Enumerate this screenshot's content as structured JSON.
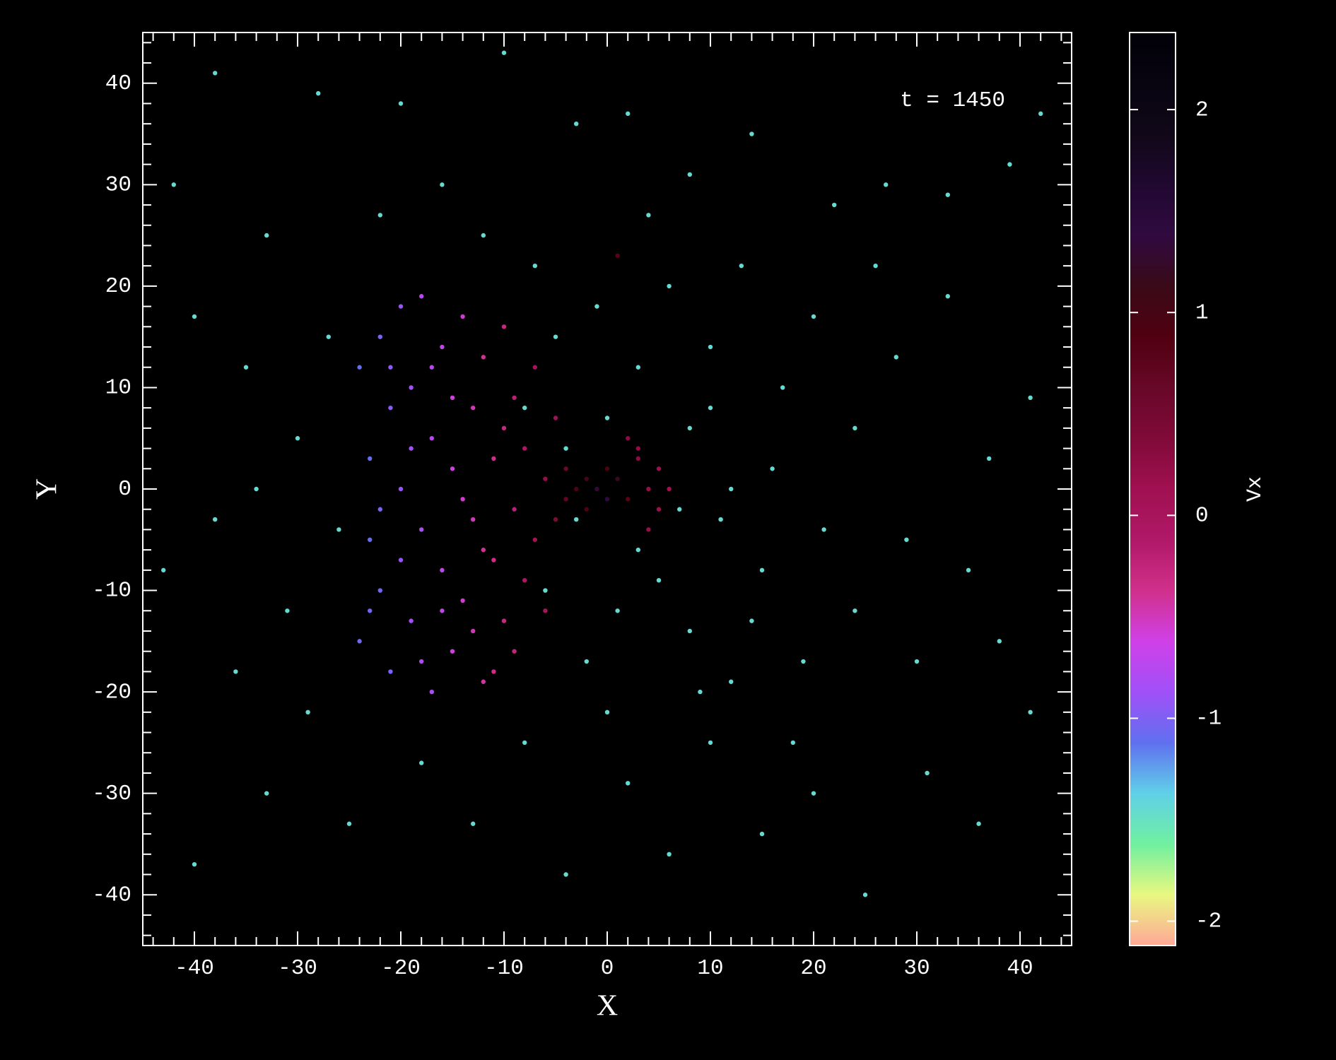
{
  "chart_data": {
    "type": "scatter",
    "annotation": "t = 1450",
    "xlabel": "X",
    "ylabel": "Y",
    "colorbar_label": "Vx",
    "xlim": [
      -45,
      45
    ],
    "ylim": [
      -45,
      45
    ],
    "xticks": [
      -40,
      -30,
      -20,
      -10,
      0,
      10,
      20,
      30,
      40
    ],
    "yticks": [
      -40,
      -30,
      -20,
      -10,
      0,
      10,
      20,
      30,
      40
    ],
    "xminorticks": [
      -44,
      -42,
      -38,
      -36,
      -34,
      -32,
      -28,
      -26,
      -24,
      -22,
      -18,
      -16,
      -14,
      -12,
      -8,
      -6,
      -4,
      -2,
      2,
      4,
      6,
      8,
      12,
      14,
      16,
      18,
      22,
      24,
      26,
      28,
      32,
      34,
      36,
      38,
      42,
      44
    ],
    "yminorticks": [
      -44,
      -42,
      -38,
      -36,
      -34,
      -32,
      -28,
      -26,
      -24,
      -22,
      -18,
      -16,
      -14,
      -12,
      -8,
      -6,
      -4,
      -2,
      2,
      4,
      6,
      8,
      12,
      14,
      16,
      18,
      22,
      24,
      26,
      28,
      32,
      34,
      36,
      38,
      42,
      44
    ],
    "clim": [
      -2.12,
      2.38
    ],
    "colorbar_ticks": [
      -2,
      -1,
      0,
      1,
      2
    ],
    "colormap": [
      "#ffa898",
      "#e8f880",
      "#70f0a0",
      "#60d0e8",
      "#6070f0",
      "#a050f8",
      "#d040e8",
      "#d0308a",
      "#b01868",
      "#a01050",
      "#800a38",
      "#680828",
      "#500010",
      "#3a0a18",
      "#300a40",
      "#200830",
      "#100818",
      "#080410",
      "#000008"
    ],
    "x": [
      -42,
      -38,
      -33,
      -28,
      -20,
      -10,
      -3,
      2,
      8,
      14,
      22,
      27,
      33,
      39,
      42,
      -40,
      -35,
      -30,
      -38,
      -43,
      -36,
      -29,
      -33,
      -40,
      -25,
      -18,
      -13,
      -8,
      -4,
      2,
      6,
      10,
      15,
      20,
      25,
      31,
      36,
      41,
      -5,
      -1,
      3,
      6,
      10,
      13,
      17,
      20,
      24,
      28,
      33,
      37,
      41,
      35,
      29,
      24,
      19,
      15,
      11,
      8,
      5,
      1,
      -2,
      -6,
      -8,
      -4,
      0,
      3,
      8,
      12,
      16,
      21,
      26,
      30,
      38,
      -12,
      -16,
      -22,
      -27,
      -31,
      -26,
      -34,
      7,
      10,
      -3,
      12,
      14,
      18,
      4,
      -7,
      9,
      0,
      -24,
      -23,
      -24,
      -23,
      -22,
      -22,
      -21,
      -21,
      -20,
      -20,
      -19,
      -19,
      -18,
      -18,
      -17,
      -17,
      -16,
      -16,
      -15,
      -15,
      -14,
      -14,
      -13,
      -13,
      -12,
      -12,
      -11,
      -11,
      -10,
      -10,
      -9,
      -9,
      -8,
      -8,
      -7,
      -7,
      -6,
      -6,
      -5,
      -5,
      -4,
      -4,
      -3,
      -2,
      -2,
      -1,
      0,
      1,
      0,
      2,
      3,
      4,
      5,
      4,
      3,
      5,
      2,
      6,
      -13,
      -17,
      -20,
      -22,
      -18,
      -15,
      -12,
      -10,
      -9,
      -11,
      -14,
      -16,
      -19,
      -21,
      -23,
      1
    ],
    "values": [
      30,
      41,
      25,
      39,
      38,
      43,
      36,
      37,
      31,
      35,
      28,
      30,
      29,
      32,
      37,
      17,
      12,
      5,
      -3,
      -8,
      -18,
      -22,
      -30,
      -37,
      -33,
      -27,
      -33,
      -25,
      -38,
      -29,
      -36,
      -25,
      -34,
      -30,
      -40,
      -28,
      -33,
      -22,
      15,
      18,
      12,
      20,
      14,
      22,
      10,
      17,
      6,
      13,
      19,
      3,
      9,
      -8,
      -5,
      -12,
      -17,
      -8,
      -3,
      6,
      -9,
      -12,
      -17,
      -10,
      8,
      4,
      7,
      -6,
      -14,
      -19,
      2,
      -4,
      22,
      -17,
      -15,
      25,
      30,
      27,
      15,
      -12,
      -4,
      0,
      -2,
      8,
      -3,
      0,
      -13,
      -25,
      27,
      22,
      -20,
      -22,
      12,
      -5,
      -15,
      3,
      15,
      -10,
      8,
      -18,
      0,
      18,
      -13,
      10,
      -4,
      19,
      -20,
      5,
      14,
      -8,
      -16,
      2,
      17,
      -11,
      8,
      -3,
      -19,
      13,
      -7,
      3,
      16,
      -13,
      9,
      -2,
      -9,
      4,
      12,
      -5,
      1,
      -12,
      7,
      -3,
      2,
      -1,
      0,
      -2,
      1,
      0,
      -1,
      1,
      2,
      -1,
      3,
      0,
      -2,
      -4,
      4,
      2,
      5,
      0,
      -14,
      12,
      -7,
      -2,
      -17,
      9,
      -6,
      6,
      -16,
      -18,
      -1,
      -12,
      4,
      12,
      -12,
      23
    ],
    "c": [
      -1.45,
      -1.45,
      -1.45,
      -1.45,
      -1.45,
      -1.45,
      -1.45,
      -1.45,
      -1.45,
      -1.45,
      -1.45,
      -1.45,
      -1.45,
      -1.45,
      -1.45,
      -1.45,
      -1.45,
      -1.45,
      -1.45,
      -1.45,
      -1.45,
      -1.45,
      -1.45,
      -1.45,
      -1.45,
      -1.45,
      -1.45,
      -1.45,
      -1.45,
      -1.45,
      -1.45,
      -1.45,
      -1.45,
      -1.45,
      -1.45,
      -1.45,
      -1.45,
      -1.45,
      -1.45,
      -1.45,
      -1.45,
      -1.45,
      -1.45,
      -1.45,
      -1.45,
      -1.45,
      -1.45,
      -1.45,
      -1.45,
      -1.45,
      -1.45,
      -1.45,
      -1.45,
      -1.45,
      -1.45,
      -1.45,
      -1.45,
      -1.45,
      -1.45,
      -1.45,
      -1.45,
      -1.45,
      -1.45,
      -1.45,
      -1.45,
      -1.45,
      -1.45,
      -1.45,
      -1.45,
      -1.45,
      -1.45,
      -1.45,
      -1.45,
      -1.45,
      -1.45,
      -1.45,
      -1.45,
      -1.45,
      -1.45,
      -1.45,
      -1.45,
      -1.45,
      -1.45,
      -1.45,
      -1.45,
      -1.45,
      -1.45,
      -1.45,
      -1.45,
      -1.45,
      -1.1,
      -1.1,
      -1.05,
      -1.1,
      -1.0,
      -1.05,
      -0.95,
      -1.0,
      -0.9,
      -0.9,
      -0.85,
      -0.85,
      -0.8,
      -0.75,
      -0.8,
      -0.75,
      -0.7,
      -0.7,
      -0.6,
      -0.6,
      -0.55,
      -0.55,
      -0.5,
      -0.5,
      -0.45,
      -0.4,
      -0.35,
      -0.35,
      -0.3,
      -0.3,
      -0.2,
      -0.2,
      -0.1,
      -0.1,
      0.0,
      0.05,
      0.2,
      0.0,
      0.1,
      0.4,
      0.6,
      0.7,
      0.9,
      0.9,
      1.0,
      1.3,
      1.4,
      1.2,
      0.9,
      0.8,
      0.3,
      0.2,
      0.15,
      0.2,
      0.25,
      0.15,
      0.3,
      0.1,
      -0.5,
      -0.75,
      -0.9,
      -1.0,
      -0.8,
      -0.6,
      -0.4,
      -0.3,
      -0.25,
      -0.35,
      -0.55,
      -0.7,
      -0.85,
      -0.95,
      -1.05,
      0.8
    ]
  }
}
